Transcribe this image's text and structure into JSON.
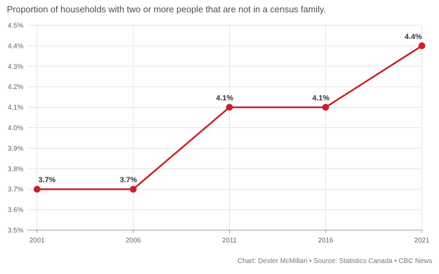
{
  "title": "Proportion of households with two or more people that are not in a census family.",
  "footer": {
    "credit": "Chart: Dexter McMillan • Source: Statistics Canada • CBC News"
  },
  "colors": {
    "line": "#c8202a",
    "grid": "#e3e3e3",
    "axis": "#999999"
  },
  "chart_data": {
    "type": "line",
    "title": "Proportion of households with two or more people that are not in a census family.",
    "xlabel": "",
    "ylabel": "",
    "x": [
      "2001",
      "2006",
      "2011",
      "2016",
      "2021"
    ],
    "series": [
      {
        "values": [
          3.7,
          3.7,
          4.1,
          4.1,
          4.4
        ],
        "labels": [
          "3.7%",
          "3.7%",
          "4.1%",
          "4.1%",
          "4.4%"
        ]
      }
    ],
    "ylim": [
      3.5,
      4.5
    ],
    "yticks": [
      3.5,
      3.6,
      3.7,
      3.8,
      3.9,
      4.0,
      4.1,
      4.2,
      4.3,
      4.4,
      4.5
    ],
    "ytick_labels": [
      "3.5%",
      "3.6%",
      "3.7%",
      "3.8%",
      "3.9%",
      "4.0%",
      "4.1%",
      "4.2%",
      "4.3%",
      "4.4%",
      "4.5%"
    ],
    "grid": true,
    "legend": "none"
  }
}
